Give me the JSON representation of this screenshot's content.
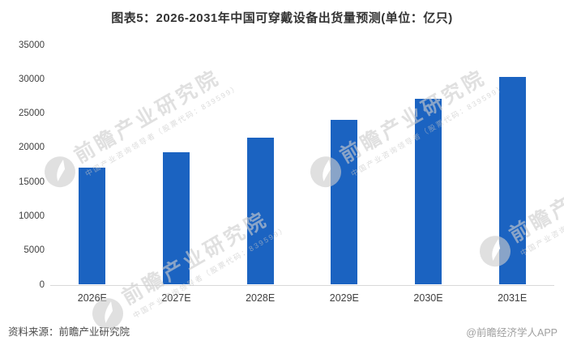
{
  "header": {
    "title": "图表5：2026-2031年中国可穿戴设备出货量预测(单位：亿只)"
  },
  "chart_data": {
    "type": "bar",
    "title": "图表5：2026-2031年中国可穿戴设备出货量预测(单位：亿只)",
    "unit": "亿只",
    "categories": [
      "2026E",
      "2027E",
      "2028E",
      "2029E",
      "2030E",
      "2031E"
    ],
    "values": [
      17100,
      19300,
      21500,
      24100,
      27100,
      30300
    ],
    "xlabel": "",
    "ylabel": "",
    "ylim": [
      0,
      35000
    ],
    "yticks": [
      0,
      5000,
      10000,
      15000,
      20000,
      25000,
      30000,
      35000
    ],
    "grid": false,
    "legend": false,
    "bar_color": "#1b63c1",
    "axis_line_color": "#d9d9d9"
  },
  "watermark": {
    "main": "前瞻产业研究院",
    "sub": "中国产业咨询领导者（股票代码：839599）"
  },
  "footer": {
    "source": "资料来源：前瞻产业研究院",
    "attribution": "@前瞻经济学人APP"
  }
}
